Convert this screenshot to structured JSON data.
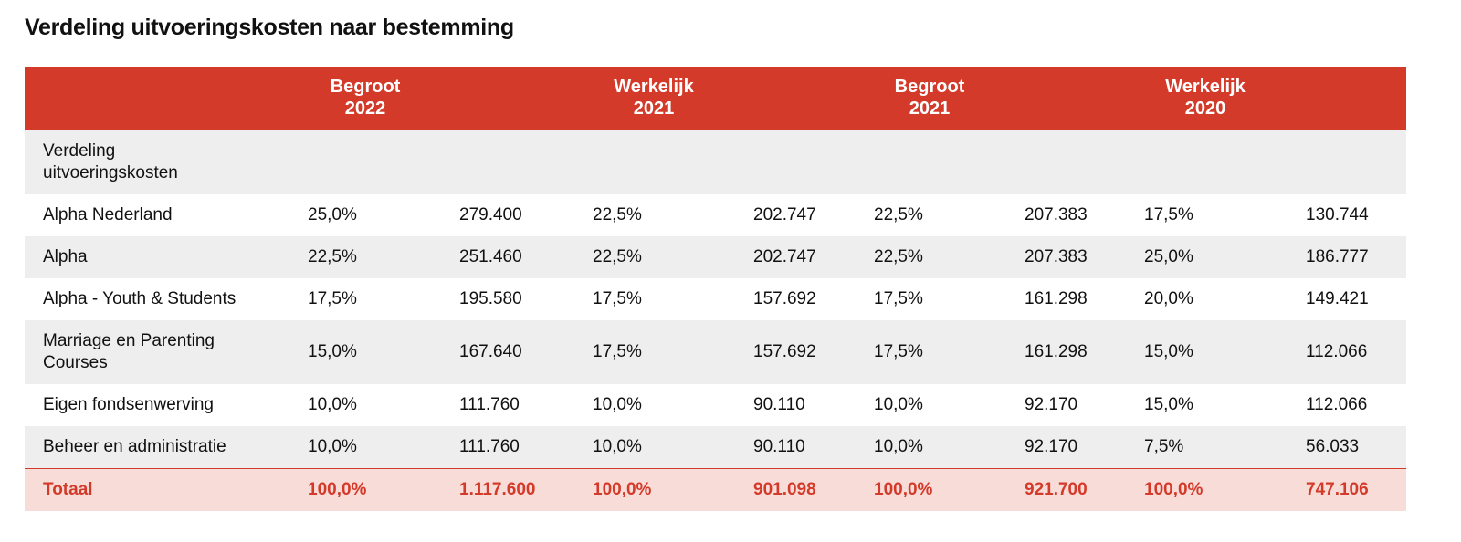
{
  "title": "Verdeling uitvoeringskosten naar bestemming",
  "header": {
    "columns": [
      {
        "label": "Begroot",
        "year": "2022"
      },
      {
        "label": "Werkelijk",
        "year": "2021"
      },
      {
        "label": "Begroot",
        "year": "2021"
      },
      {
        "label": "Werkelijk",
        "year": "2020"
      }
    ]
  },
  "table": {
    "section": "Verdeling uitvoeringskosten",
    "rows": [
      [
        "Alpha Nederland",
        "25,0%",
        "279.400",
        "22,5%",
        "202.747",
        "22,5%",
        "207.383",
        "17,5%",
        "130.744"
      ],
      [
        "Alpha",
        "22,5%",
        "251.460",
        "22,5%",
        "202.747",
        "22,5%",
        "207.383",
        "25,0%",
        "186.777"
      ],
      [
        "Alpha - Youth & Students",
        "17,5%",
        "195.580",
        "17,5%",
        "157.692",
        "17,5%",
        "161.298",
        "20,0%",
        "149.421"
      ],
      [
        "Marriage en Parenting Courses",
        "15,0%",
        "167.640",
        "17,5%",
        "157.692",
        "17,5%",
        "161.298",
        "15,0%",
        "112.066"
      ],
      [
        "Eigen fondsenwerving",
        "10,0%",
        "111.760",
        "10,0%",
        "90.110",
        "10,0%",
        "92.170",
        "15,0%",
        "112.066"
      ],
      [
        "Beheer en administratie",
        "10,0%",
        "111.760",
        "10,0%",
        "90.110",
        "10,0%",
        "92.170",
        "7,5%",
        "56.033"
      ]
    ],
    "total": [
      "Totaal",
      "100,0%",
      "1.117.600",
      "100,0%",
      "901.098",
      "100,0%",
      "921.700",
      "100,0%",
      "747.106"
    ]
  }
}
